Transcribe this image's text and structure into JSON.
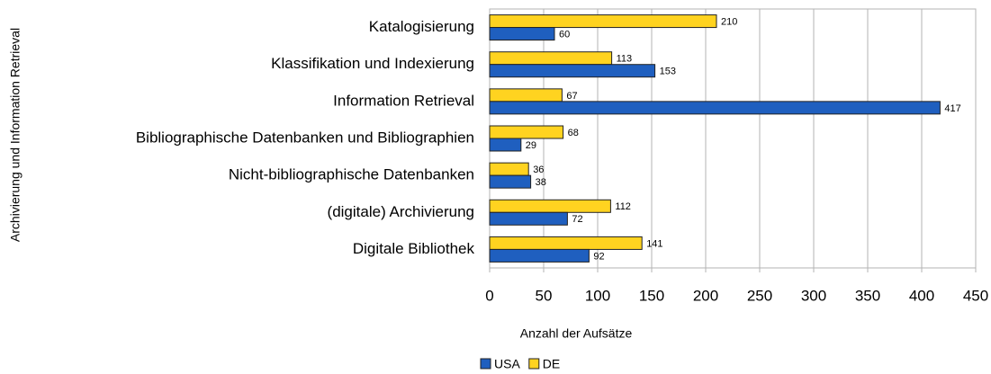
{
  "chart_data": {
    "type": "hbar",
    "categories": [
      "Katalogisierung",
      "Klassifikation und Indexierung",
      "Information Retrieval",
      "Bibliographische Datenbanken und Bibliographien",
      "Nicht-bibliographische Datenbanken",
      "(digitale) Archivierung",
      "Digitale Bibliothek"
    ],
    "series": [
      {
        "name": "USA",
        "color": "#1f5fbf",
        "values": [
          60,
          153,
          417,
          29,
          38,
          72,
          92
        ]
      },
      {
        "name": "DE",
        "color": "#ffd320",
        "values": [
          210,
          113,
          67,
          68,
          36,
          112,
          141
        ]
      }
    ],
    "xlabel": "Anzahl der Aufsätze",
    "ylabel": "Archivierung und Information Retrieval",
    "xlim": [
      0,
      450
    ],
    "xticks": [
      0,
      50,
      100,
      150,
      200,
      250,
      300,
      350,
      400,
      450
    ],
    "grid": true,
    "legend": "bottom"
  }
}
